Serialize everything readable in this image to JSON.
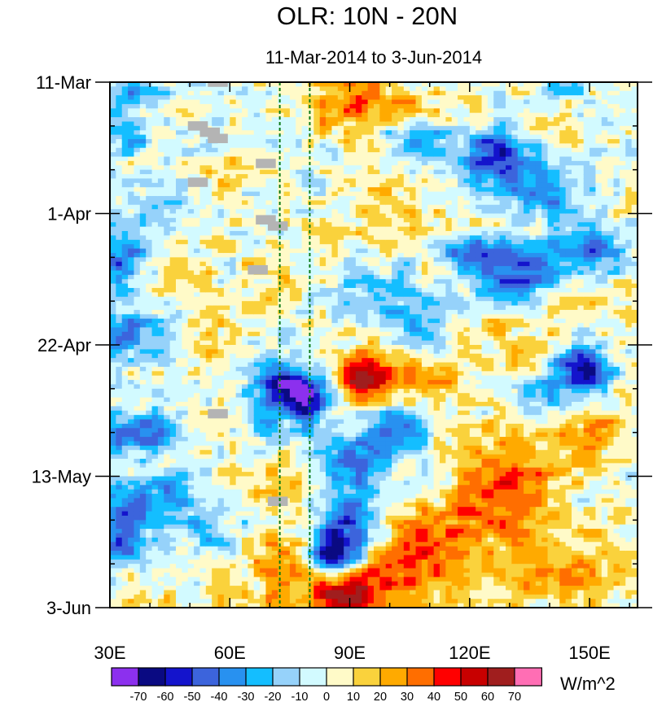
{
  "chart_data": {
    "type": "heatmap",
    "title": "OLR: 10N - 20N",
    "subtitle": "11-Mar-2014 to 3-Jun-2014",
    "xlabel": "",
    "ylabel": "",
    "x_range": [
      30,
      162
    ],
    "x_ticks": [
      {
        "value": 30,
        "label": "30E"
      },
      {
        "value": 60,
        "label": "60E"
      },
      {
        "value": 90,
        "label": "90E"
      },
      {
        "value": 120,
        "label": "120E"
      },
      {
        "value": 150,
        "label": "150E"
      }
    ],
    "y_range_days": [
      0,
      84
    ],
    "y_ticks": [
      {
        "day": 0,
        "label": "11-Mar"
      },
      {
        "day": 21,
        "label": "1-Apr"
      },
      {
        "day": 42,
        "label": "22-Apr"
      },
      {
        "day": 63,
        "label": "13-May"
      },
      {
        "day": 84,
        "label": "3-Jun"
      }
    ],
    "reference_lines_lon": [
      72.5,
      80
    ],
    "missing_cells": [
      {
        "lon": 57,
        "day": 0
      },
      {
        "lon": 52,
        "day": 7
      },
      {
        "lon": 55,
        "day": 8
      },
      {
        "lon": 57,
        "day": 9
      },
      {
        "lon": 69,
        "day": 13
      },
      {
        "lon": 52,
        "day": 16
      },
      {
        "lon": 69,
        "day": 22
      },
      {
        "lon": 72,
        "day": 23
      },
      {
        "lon": 67,
        "day": 30
      },
      {
        "lon": 57,
        "day": 53
      },
      {
        "lon": 72,
        "day": 67
      }
    ],
    "colorbar": {
      "unit": "W/m^2",
      "levels": [
        -70,
        -60,
        -50,
        -40,
        -30,
        -20,
        -10,
        0,
        10,
        20,
        30,
        40,
        50,
        60,
        70
      ],
      "colors": [
        "#8c30ee",
        "#0a0a82",
        "#1414cc",
        "#3c64dc",
        "#2891f0",
        "#14beff",
        "#96d2fa",
        "#d2faff",
        "#fffac8",
        "#fad23c",
        "#ffaa00",
        "#ff6e00",
        "#ff0000",
        "#c80000",
        "#a01e1e",
        "#ff6eb4"
      ]
    },
    "features": [
      {
        "name": "Indian Ocean / Bay of Bengal enhanced convection",
        "lon": 75,
        "day": 50,
        "value": -70
      },
      {
        "name": "Western Pacific convection (late March)",
        "lon": 128,
        "day": 12,
        "value": -60
      },
      {
        "name": "Western Pacific convection (mid April)",
        "lon": 132,
        "day": 32,
        "value": -70
      },
      {
        "name": "Western Pacific convection (late April)",
        "lon": 148,
        "day": 46,
        "value": -70
      },
      {
        "name": "Arabian Sea convection (late May)",
        "lon": 33,
        "day": 73,
        "value": -70
      },
      {
        "name": "Bay of Bengal suppressed (early June)",
        "lon": 88,
        "day": 82,
        "value": 60
      },
      {
        "name": "Indochina suppressed (late April)",
        "lon": 95,
        "day": 50,
        "value": 50
      },
      {
        "name": "South China Sea suppressed (late May)",
        "lon": 118,
        "day": 70,
        "value": 40
      }
    ]
  }
}
